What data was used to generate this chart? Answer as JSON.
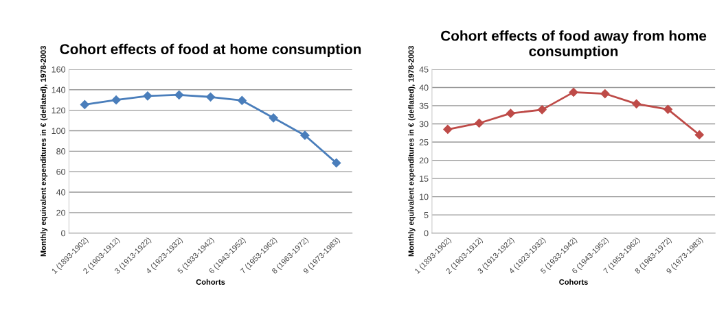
{
  "chart_data": [
    {
      "type": "line",
      "title": "Cohort effects of food at home consumption",
      "xlabel": "Cohorts",
      "ylabel": "Monthly equivalent expenditures in € (deflated), 1978-2003",
      "categories": [
        "1 (1893-1902)",
        "2 (1903-1912)",
        "3 (1913-1922)",
        "4 (1923-1932)",
        "5 (1933-1942)",
        "6 (1943-1952)",
        "7 (1953-1962)",
        "8 (1963-1972)",
        "9 (1973-1983)"
      ],
      "series": [
        {
          "color": "#4a7ebb",
          "values": [
            125.5,
            130,
            134,
            135,
            133,
            129.5,
            112.5,
            95.5,
            68.5
          ]
        }
      ],
      "ylim": [
        0,
        160
      ],
      "yticks": [
        0,
        20,
        40,
        60,
        80,
        100,
        120,
        140,
        160
      ],
      "grid": "y",
      "marker": "diamond",
      "legend": false
    },
    {
      "type": "line",
      "title": "Cohort effects of food away from home consumption",
      "xlabel": "Cohorts",
      "ylabel": "Monthly equivalent expenditures in € (deflated), 1978-2003",
      "categories": [
        "1 (1893-1902)",
        "2 (1903-1912)",
        "3 (1913-1922)",
        "4 (1923-1932)",
        "5 (1933-1942)",
        "6 (1943-1952)",
        "7 (1953-1962)",
        "8 (1963-1972)",
        "9 (1973-1983)"
      ],
      "series": [
        {
          "color": "#be4b48",
          "values": [
            28.5,
            30.2,
            32.9,
            33.9,
            38.7,
            38.3,
            35.5,
            34,
            27
          ]
        }
      ],
      "ylim": [
        0,
        45
      ],
      "yticks": [
        0,
        5,
        10,
        15,
        20,
        25,
        30,
        35,
        40,
        45
      ],
      "grid": "y",
      "marker": "diamond",
      "legend": false
    }
  ]
}
